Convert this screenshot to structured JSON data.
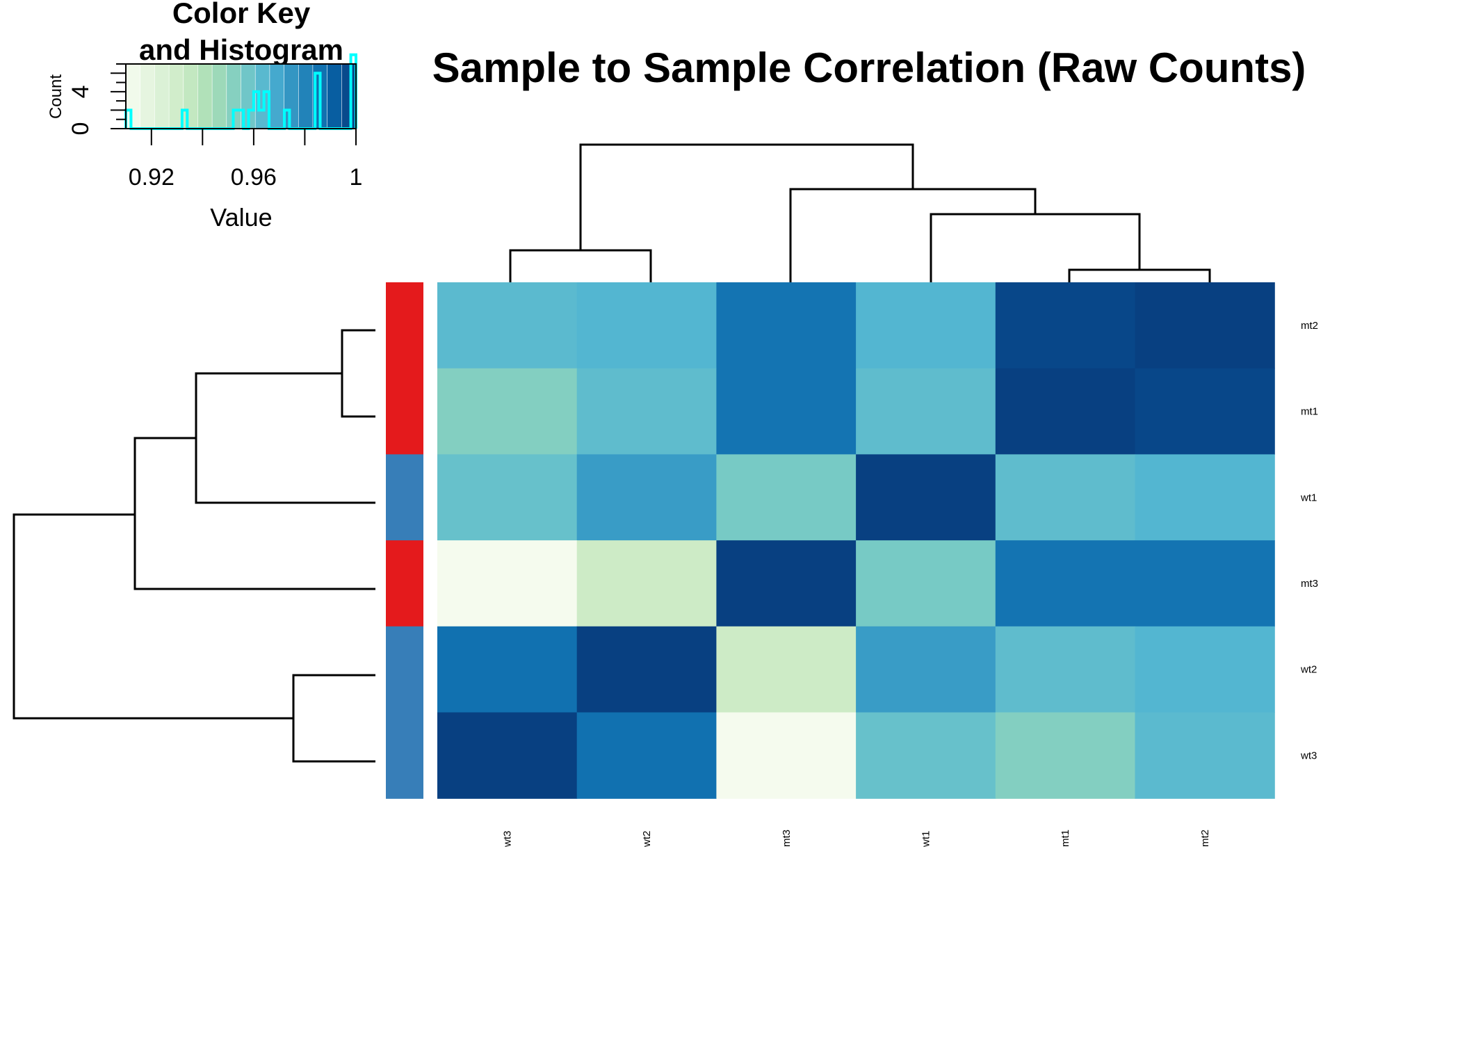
{
  "chart_data": {
    "type": "heatmap",
    "title": "Sample to Sample Correlation (Raw Counts)",
    "rows": [
      "mt2",
      "mt1",
      "wt1",
      "mt3",
      "wt2",
      "wt3"
    ],
    "cols": [
      "wt3",
      "wt2",
      "mt3",
      "wt1",
      "mt1",
      "mt2"
    ],
    "values": [
      [
        0.963,
        0.965,
        0.985,
        0.965,
        0.998,
        1.0
      ],
      [
        0.953,
        0.962,
        0.985,
        0.962,
        1.0,
        0.998
      ],
      [
        0.96,
        0.973,
        0.956,
        1.0,
        0.962,
        0.965
      ],
      [
        0.911,
        0.932,
        1.0,
        0.956,
        0.985,
        0.985
      ],
      [
        0.986,
        1.0,
        0.932,
        0.973,
        0.962,
        0.965
      ],
      [
        1.0,
        0.986,
        0.911,
        0.96,
        0.953,
        0.963
      ]
    ],
    "row_side_colors": [
      "#E41A1C",
      "#E41A1C",
      "#377EB8",
      "#E41A1C",
      "#377EB8",
      "#377EB8"
    ],
    "colorscale": [
      "#F7FCF0",
      "#E0F3DB",
      "#CCEBC5",
      "#A8DDB5",
      "#7BCCC4",
      "#4EB3D3",
      "#2B8CBE",
      "#0868AC",
      "#084081"
    ],
    "color_key": {
      "title": "Color Key\nand Histogram",
      "xlabel": "Value",
      "ylabel": "Count",
      "x_range": [
        0.91,
        1.0
      ],
      "x_ticks": [
        "0.92",
        "0.96",
        "1"
      ],
      "y_ticks": [
        "0",
        "4"
      ],
      "histogram_line_color": "#00FFFF"
    }
  }
}
